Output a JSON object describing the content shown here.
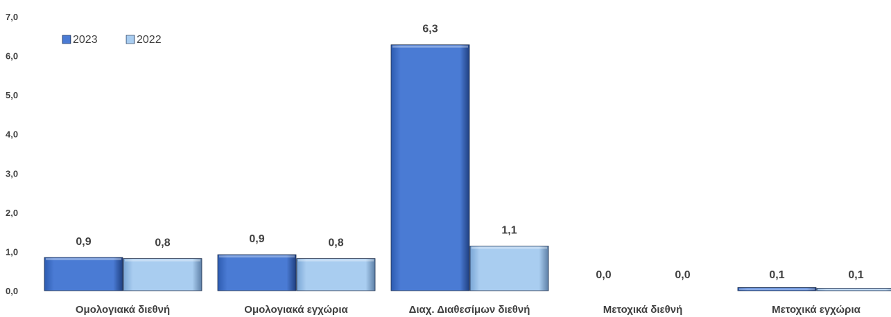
{
  "chart_data": {
    "type": "bar",
    "title": "",
    "xlabel": "",
    "ylabel": "",
    "categories": [
      "Ομολογιακά διεθνή",
      "Ομολογιακά εγχώρια",
      "Διαχ. Διαθεσίμων διεθνή",
      "Μετοχικά διεθνή",
      "Μετοχικά εγχώρια"
    ],
    "series": [
      {
        "name": "2023",
        "values": [
          0.85,
          0.92,
          6.28,
          0.0,
          0.08
        ],
        "labels": [
          "0,9",
          "0,9",
          "6,3",
          "0,0",
          "0,1"
        ],
        "color": "#4a7bd4"
      },
      {
        "name": "2022",
        "values": [
          0.82,
          0.82,
          1.14,
          0.0,
          0.06
        ],
        "labels": [
          "0,8",
          "0,8",
          "1,1",
          "0,0",
          "0,1"
        ],
        "color": "#a9cdf0"
      }
    ],
    "yticks": [
      "0,0",
      "1,0",
      "2,0",
      "3,0",
      "4,0",
      "5,0",
      "6,0",
      "7,0"
    ],
    "ylim": [
      0,
      7
    ],
    "grid": false,
    "legend_position": "top-left"
  }
}
